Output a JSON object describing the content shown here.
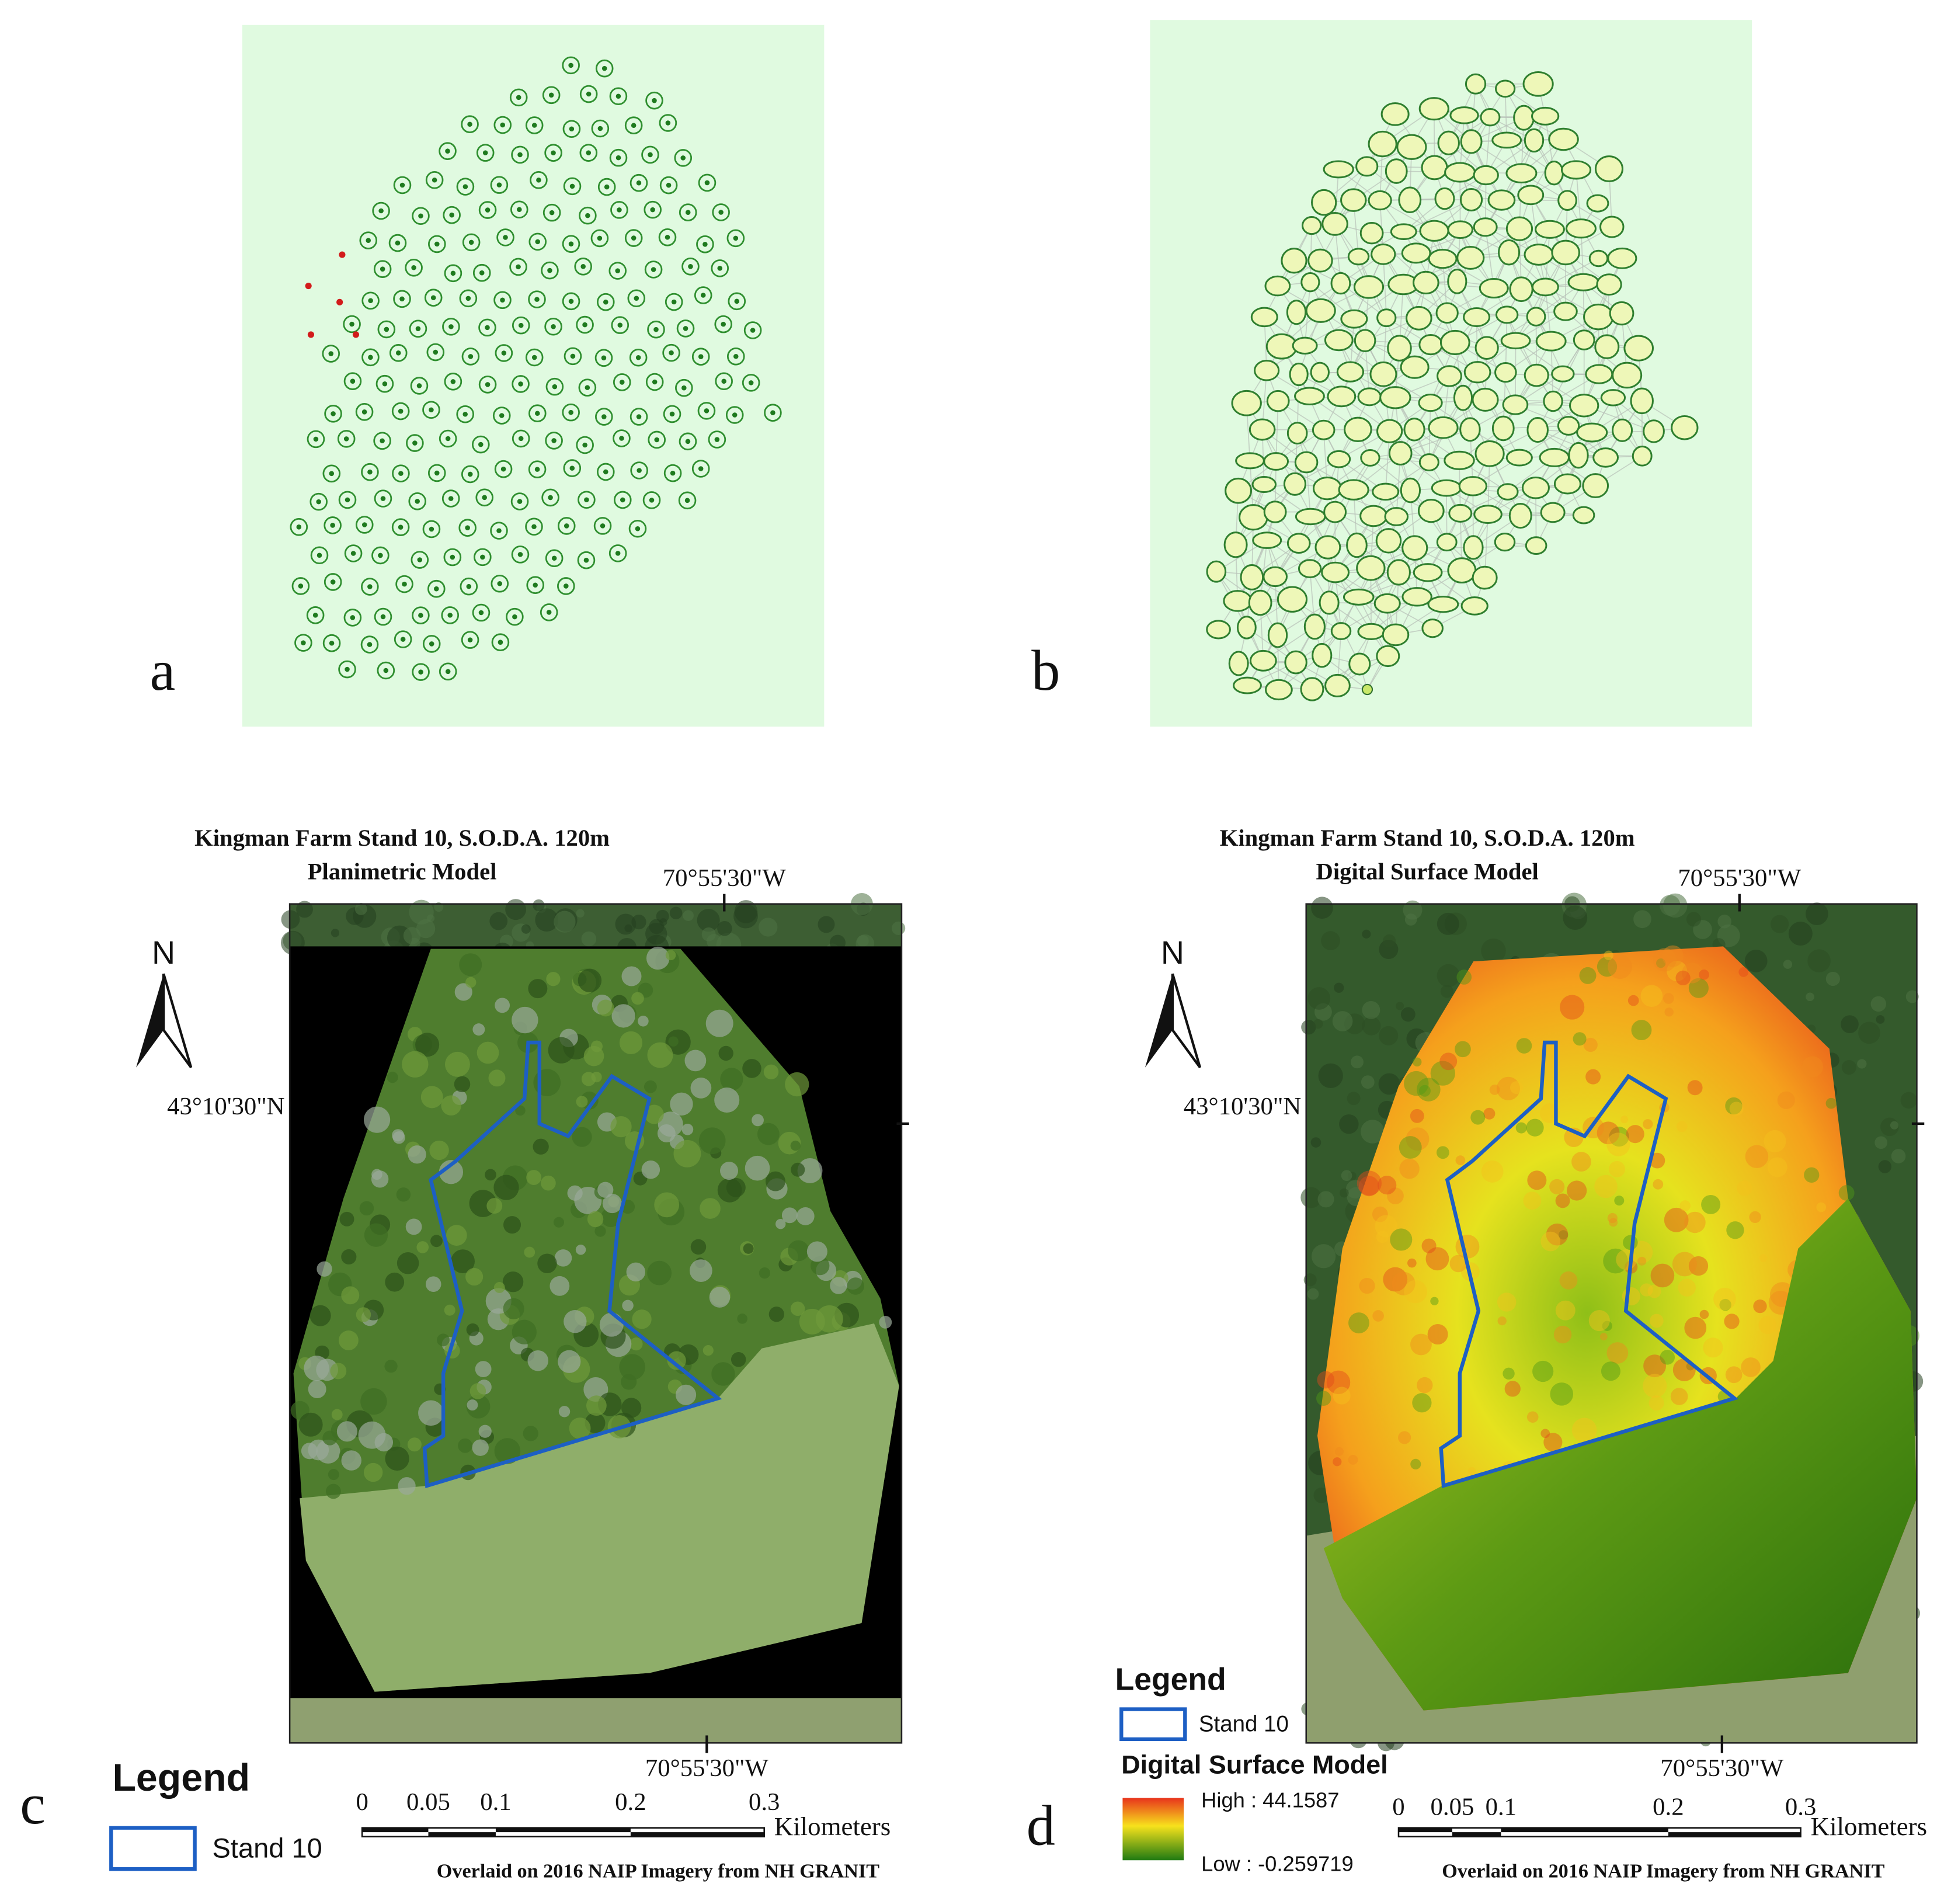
{
  "panels": [
    {
      "label": "a"
    },
    {
      "label": "b"
    },
    {
      "label": "c",
      "title": "Kingman Farm Stand 10, S.O.D.A. 120m",
      "subtitle": "Planimetric Model",
      "north": "N",
      "lon_top": "70°55'30\"W",
      "lon_bottom": "70°55'30\"W",
      "lat": "43°10'30\"N",
      "legend": {
        "title": "Legend",
        "items": [
          "Stand 10"
        ]
      },
      "scale": {
        "ticks": [
          "0",
          "0.05",
          "0.1",
          "0.2",
          "0.3"
        ],
        "unit": "Kilometers"
      },
      "note": "Overlaid on 2016 NAIP Imagery from NH GRANIT"
    },
    {
      "label": "d",
      "title": "Kingman Farm Stand 10, S.O.D.A. 120m",
      "subtitle": "Digital Surface Model",
      "north": "N",
      "lon_top": "70°55'30\"W",
      "lon_bottom": "70°55'30\"W",
      "lat": "43°10'30\"N",
      "legend": {
        "title": "Legend",
        "items": [
          "Stand 10"
        ],
        "ramp_title": "Digital Surface Model",
        "high": "High : 44.1587",
        "low": "Low : -0.259719"
      },
      "scale": {
        "ticks": [
          "0",
          "0.05",
          "0.1",
          "0.2",
          "0.3"
        ],
        "unit": "Kilometers"
      },
      "note": "Overlaid on 2016 NAIP Imagery from NH GRANIT"
    }
  ]
}
